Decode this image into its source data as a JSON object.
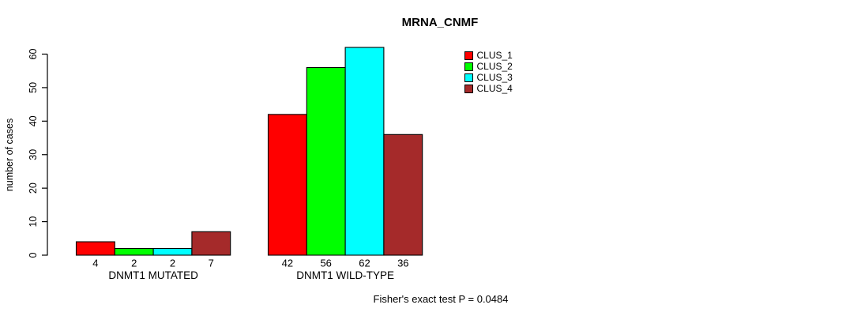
{
  "chart_data": {
    "type": "bar",
    "title": "MRNA_CNMF",
    "ylabel": "number of cases",
    "xlabel": "",
    "ylim": [
      0,
      60
    ],
    "yticks": [
      0,
      10,
      20,
      30,
      40,
      50,
      60
    ],
    "categories": [
      "DNMT1 MUTATED",
      "DNMT1 WILD-TYPE"
    ],
    "series": [
      {
        "name": "CLUS_1",
        "color": "#ff0000",
        "values": [
          4,
          42
        ]
      },
      {
        "name": "CLUS_2",
        "color": "#00ff00",
        "values": [
          2,
          56
        ]
      },
      {
        "name": "CLUS_3",
        "color": "#00ffff",
        "values": [
          2,
          62
        ]
      },
      {
        "name": "CLUS_4",
        "color": "#a52a2a",
        "values": [
          7,
          36
        ]
      }
    ],
    "bar_value_labels": [
      [
        "4",
        "2",
        "2",
        "7"
      ],
      [
        "42",
        "56",
        "62",
        "36"
      ]
    ],
    "legend_position": "top-right",
    "grid": false,
    "annotation": "Fisher's exact test P = 0.0484"
  }
}
